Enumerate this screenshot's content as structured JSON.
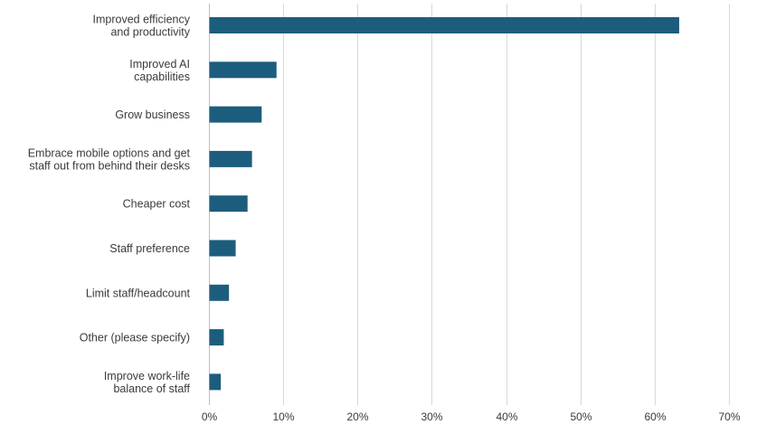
{
  "chart_data": {
    "type": "bar",
    "orientation": "horizontal",
    "categories": [
      [
        "Improved efficiency",
        "and productivity"
      ],
      [
        "Improved AI",
        "capabilities"
      ],
      [
        "Grow business"
      ],
      [
        "Embrace mobile options and get",
        "staff out from behind their desks"
      ],
      [
        "Cheaper cost"
      ],
      [
        "Staff preference"
      ],
      [
        "Limit staff/headcount"
      ],
      [
        "Other (please specify)"
      ],
      [
        "Improve work-life",
        "balance of staff"
      ]
    ],
    "values": [
      63.3,
      9.1,
      7.1,
      5.8,
      5.2,
      3.6,
      2.7,
      2.0,
      1.6
    ],
    "xlim": [
      0,
      70
    ],
    "ticks": [
      0,
      10,
      20,
      30,
      40,
      50,
      60,
      70
    ],
    "tick_labels": [
      "0%",
      "10%",
      "20%",
      "30%",
      "40%",
      "50%",
      "60%",
      "70%"
    ],
    "grid": true,
    "title": "",
    "xlabel": "",
    "ylabel": "",
    "bar_color": "#1c5d7d",
    "grid_color": "#d9d9d9",
    "text_color": "#3a3a3a"
  }
}
